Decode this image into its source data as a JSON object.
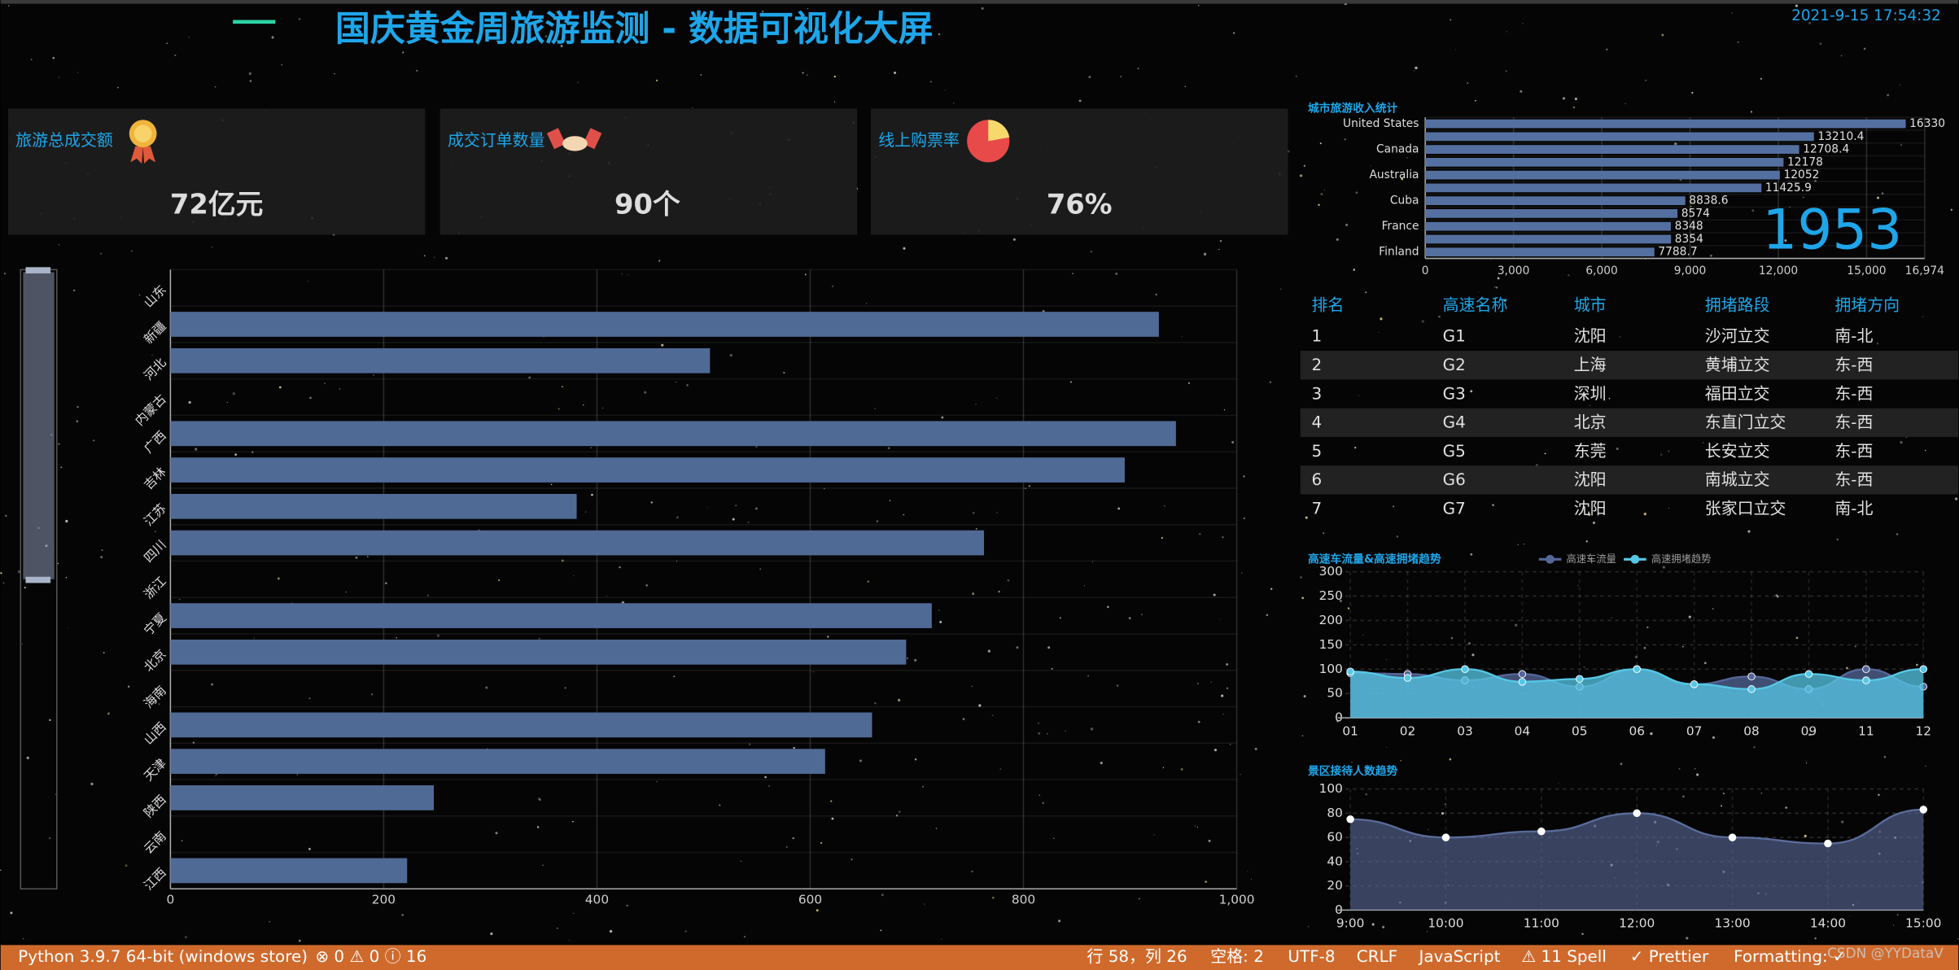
{
  "header": {
    "title": "国庆黄金周旅游监测 - 数据可视化大屏",
    "datetime": "2021-9-15 17:54:32"
  },
  "kpis": [
    {
      "label": "旅游总成交额",
      "value": "72亿元"
    },
    {
      "label": "成交订单数量",
      "value": "90个"
    },
    {
      "label": "线上购票率",
      "value": "76%"
    }
  ],
  "chart_data": [
    {
      "type": "bar",
      "horizontal": true,
      "color": "#506a96",
      "grid": true,
      "categories": [
        "山东",
        "新疆",
        "河北",
        "内蒙古",
        "广西",
        "吉林",
        "江苏",
        "四川",
        "浙江",
        "宁夏",
        "北京",
        "海南",
        "山西",
        "天津",
        "陕西",
        "云南",
        "江西"
      ],
      "values": [
        0,
        927,
        506,
        0,
        943,
        895,
        381,
        763,
        0,
        714,
        690,
        0,
        658,
        614,
        247,
        0,
        222
      ],
      "xlim": [
        0,
        1000
      ],
      "xticks": [
        0,
        200,
        400,
        600,
        800,
        {
          "value": 1000,
          "label": "1,000"
        }
      ]
    },
    {
      "type": "bar",
      "horizontal": true,
      "color": "#5470a0",
      "grid": true,
      "show_values": true,
      "title": "城市旅游收入统计",
      "annotation": "1953",
      "categories": [
        "United States",
        null,
        "Canada",
        null,
        "Australia",
        null,
        "Cuba",
        null,
        "France",
        null,
        "Finland"
      ],
      "values": [
        16330,
        13210.4,
        12708.4,
        12178,
        12052,
        11425.9,
        8838.6,
        8574,
        8348,
        8354,
        7788.7
      ],
      "xlim": [
        0,
        16974
      ],
      "xticks": [
        0,
        {
          "value": 3000,
          "label": "3,000"
        },
        {
          "value": 6000,
          "label": "6,000"
        },
        {
          "value": 9000,
          "label": "9,000"
        },
        {
          "value": 12000,
          "label": "12,000"
        },
        {
          "value": 15000,
          "label": "15,000"
        },
        {
          "value": 16974,
          "label": "16,974"
        }
      ]
    },
    {
      "type": "line",
      "smooth": true,
      "area": true,
      "grid": true,
      "title": "高速车流量&高速拥堵趋势",
      "categories": [
        "01",
        "02",
        "03",
        "04",
        "05",
        "06",
        "07",
        "08",
        "09",
        "11",
        "12"
      ],
      "series": [
        {
          "name": "高速车流量",
          "color": "#55679a",
          "values": [
            92,
            90,
            77,
            90,
            64,
            100,
            69,
            85,
            59,
            100,
            64
          ]
        },
        {
          "name": "高速拥堵趋势",
          "color": "#56c8e6",
          "values": [
            95,
            82,
            100,
            74,
            80,
            100,
            69,
            59,
            90,
            77,
            100
          ]
        }
      ],
      "ylim": [
        0,
        300
      ],
      "yticks": [
        0,
        50,
        100,
        150,
        200,
        250,
        300
      ]
    },
    {
      "type": "line",
      "smooth": true,
      "area": true,
      "grid": true,
      "title": "景区接待人数趋势",
      "color": "#5b6c9c",
      "categories": [
        "9:00",
        "10:00",
        "11:00",
        "12:00",
        "13:00",
        "14:00",
        "15:00"
      ],
      "values": [
        75,
        60,
        65,
        80,
        60,
        55,
        83
      ],
      "ylim": [
        0,
        100
      ],
      "yticks": [
        0,
        20,
        40,
        60,
        80,
        100
      ]
    }
  ],
  "table": {
    "headers": [
      "排名",
      "高速名称",
      "城市",
      "拥堵路段",
      "拥堵方向"
    ],
    "rows": [
      [
        "1",
        "G1",
        "沈阳",
        "沙河立交",
        "南-北"
      ],
      [
        "2",
        "G2",
        "上海",
        "黄埔立交",
        "东-西"
      ],
      [
        "3",
        "G3",
        "深圳",
        "福田立交",
        "东-西"
      ],
      [
        "4",
        "G4",
        "北京",
        "东直门立交",
        "东-西"
      ],
      [
        "5",
        "G5",
        "东莞",
        "长安立交",
        "东-西"
      ],
      [
        "6",
        "G6",
        "沈阳",
        "南城立交",
        "东-西"
      ],
      [
        "7",
        "G7",
        "沈阳",
        "张家口立交",
        "南-北"
      ]
    ]
  },
  "status_bar": {
    "items": [
      "Python 3.9.7 64-bit (windows store)",
      "⊗ 0 ⚠ 0 ⓘ 16",
      "行 58，列 26",
      "空格: 2",
      "UTF-8",
      "CRLF",
      "JavaScript",
      "⚠ 11 Spell",
      "✓ Prettier",
      "Formatting: ✓"
    ],
    "watermark": "CSDN @YYDataV"
  }
}
